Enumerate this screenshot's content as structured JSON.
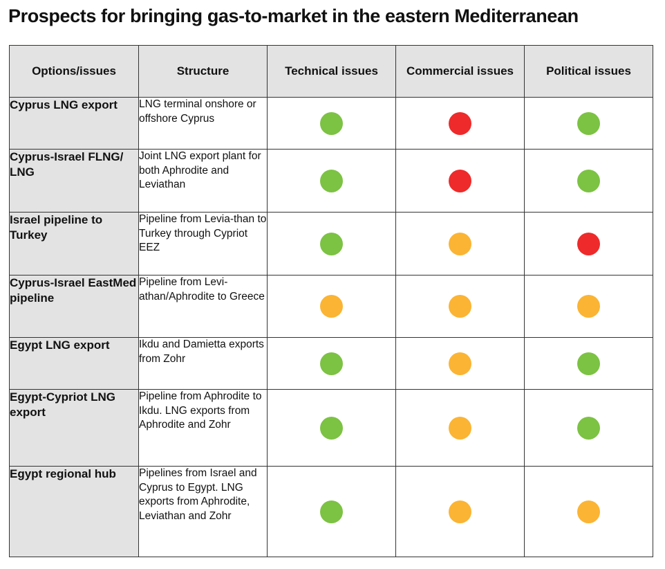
{
  "title": "Prospects for bringing gas-to-market in the eastern Mediterranean",
  "headers": [
    "Options/issues",
    "Structure",
    "Technical issues",
    "Commercial issues",
    "Political issues"
  ],
  "colors": {
    "green": "#7cc243",
    "amber": "#fbb433",
    "red": "#ee2a2a",
    "header_bg": "#e3e3e4"
  },
  "rows": [
    {
      "option": "Cyprus LNG export",
      "structure": "LNG terminal onshore or offshore Cyprus",
      "technical": "green",
      "commercial": "red",
      "political": "green"
    },
    {
      "option": "Cyprus-Israel FLNG/ LNG",
      "structure": "Joint LNG export plant for both Aphrodite and Leviathan",
      "technical": "green",
      "commercial": "red",
      "political": "green"
    },
    {
      "option": "Israel pipeline to Turkey",
      "structure": "Pipeline from Levia-than to Turkey through Cypriot EEZ",
      "technical": "green",
      "commercial": "amber",
      "political": "red"
    },
    {
      "option": "Cyprus-Israel EastMed pipeline",
      "structure": "Pipeline from Levi-athan/Aphrodite to Greece",
      "technical": "amber",
      "commercial": "amber",
      "political": "amber"
    },
    {
      "option": "Egypt LNG export",
      "structure": "Ikdu and Damietta exports from Zohr",
      "technical": "green",
      "commercial": "amber",
      "political": "green"
    },
    {
      "option": "Egypt-Cypriot LNG export",
      "structure": "Pipeline from Aphrodite to Ikdu. LNG exports from Aphrodite and Zohr",
      "technical": "green",
      "commercial": "amber",
      "political": "green"
    },
    {
      "option": "Egypt regional hub",
      "structure": "Pipelines from Israel and Cyprus to Egypt. LNG exports from Aphrodite, Leviathan and Zohr",
      "technical": "green",
      "commercial": "amber",
      "political": "amber"
    }
  ]
}
